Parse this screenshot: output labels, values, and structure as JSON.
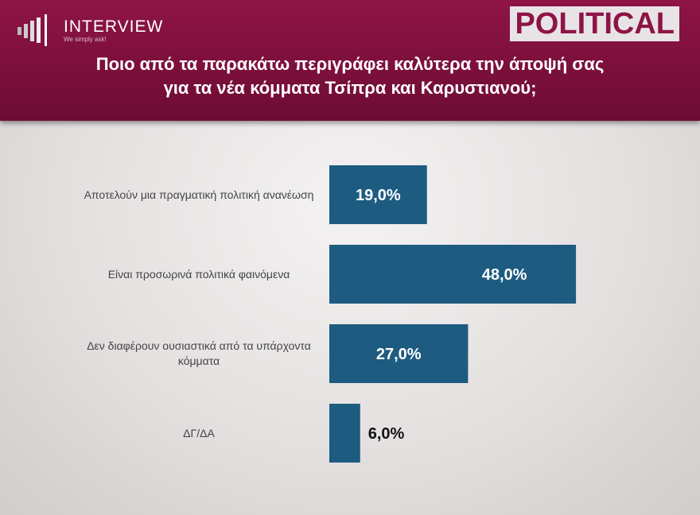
{
  "header": {
    "logo": "INTERVIEW",
    "tagline": "We simply ask!",
    "brand": "POLITICAL"
  },
  "chart_data": {
    "type": "barh",
    "title": "Ποιο από τα παρακάτω περιγράφει καλύτερα την άποψή σας για τα νέα κόμματα Τσίπρα και Καρυστιανού;",
    "categories": [
      "Αποτελούν μια πραγματική πολιτική ανανέωση",
      "Είναι προσωρινά πολιτικά φαινόμενα",
      "Δεν διαφέρουν ουσιαστικά από τα υπάρχοντα κόμματα",
      "ΔΓ/ΔΑ"
    ],
    "values": [
      19,
      48,
      27,
      6
    ],
    "value_labels": [
      "19,0%",
      "48,0%",
      "27,0%",
      "6,0%"
    ],
    "color": "#1d5c80"
  }
}
